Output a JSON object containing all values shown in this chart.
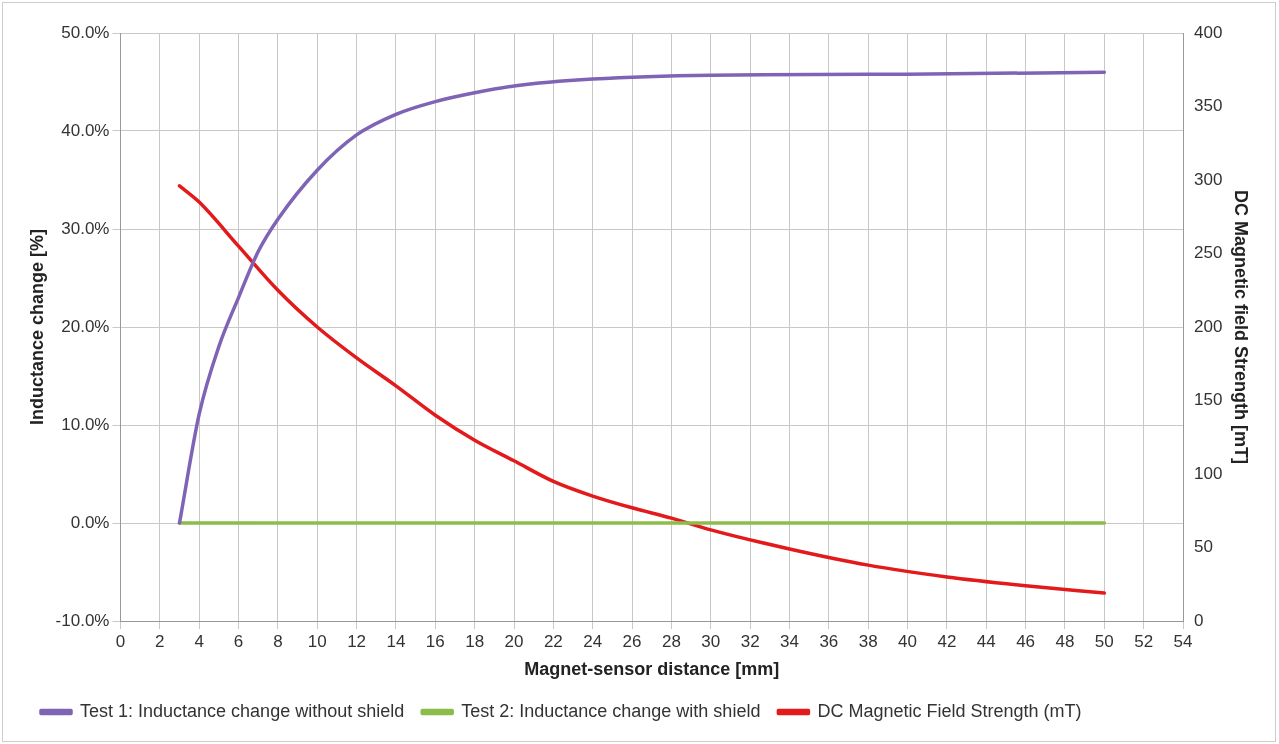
{
  "chart_data": {
    "type": "line",
    "xlabel": "Magnet-sensor distance [mm]",
    "ylabel": "Inductance change [%]",
    "y2label": "DC Magnetic field Strength [mT]",
    "xlim": [
      0,
      54
    ],
    "xticks": [
      0,
      2,
      4,
      6,
      8,
      10,
      12,
      14,
      16,
      18,
      20,
      22,
      24,
      26,
      28,
      30,
      32,
      34,
      36,
      38,
      40,
      42,
      44,
      46,
      48,
      50,
      52,
      54
    ],
    "ylim": [
      -10,
      50
    ],
    "yticks": [
      {
        "value": -10,
        "label": "-10.0%"
      },
      {
        "value": 0,
        "label": "0.0%"
      },
      {
        "value": 10,
        "label": "10.0%"
      },
      {
        "value": 20,
        "label": "20.0%"
      },
      {
        "value": 30,
        "label": "30.0%"
      },
      {
        "value": 40,
        "label": "40.0%"
      },
      {
        "value": 50,
        "label": "50.0%"
      }
    ],
    "y2lim": [
      0,
      400
    ],
    "y2ticks": [
      0,
      50,
      100,
      150,
      200,
      250,
      300,
      350,
      400
    ],
    "grid": true,
    "legend": "bottom",
    "marker": "none",
    "line_style": "solid",
    "series": [
      {
        "name": "Test 1: Inductance change without shield",
        "color": "#7f63b5",
        "x": [
          3,
          4,
          5,
          6,
          7,
          8,
          10,
          12,
          14,
          16,
          18,
          20,
          24,
          30,
          40,
          50
        ],
        "values": [
          0,
          11.1,
          18,
          23,
          27.7,
          31,
          36,
          39.6,
          41.7,
          43,
          43.9,
          44.6,
          45.3,
          45.7,
          45.8,
          46
        ]
      },
      {
        "name": "Test 2: Inductance change with shield",
        "color": "#8cbd4b",
        "x": [
          3,
          50
        ],
        "values": [
          0,
          0
        ]
      },
      {
        "name": "DC Magnetic Field Strength (mT)",
        "color": "#e31a1c",
        "axis": "y2",
        "x": [
          3,
          4,
          6,
          8,
          10,
          12,
          14,
          16,
          18,
          20,
          22,
          24,
          26,
          28,
          30,
          34,
          38,
          42,
          46,
          50
        ],
        "values": [
          296,
          285,
          255,
          225,
          200,
          179,
          160,
          140,
          123,
          109,
          95,
          85,
          77,
          70,
          62,
          49,
          38,
          30,
          24,
          19
        ]
      }
    ]
  }
}
